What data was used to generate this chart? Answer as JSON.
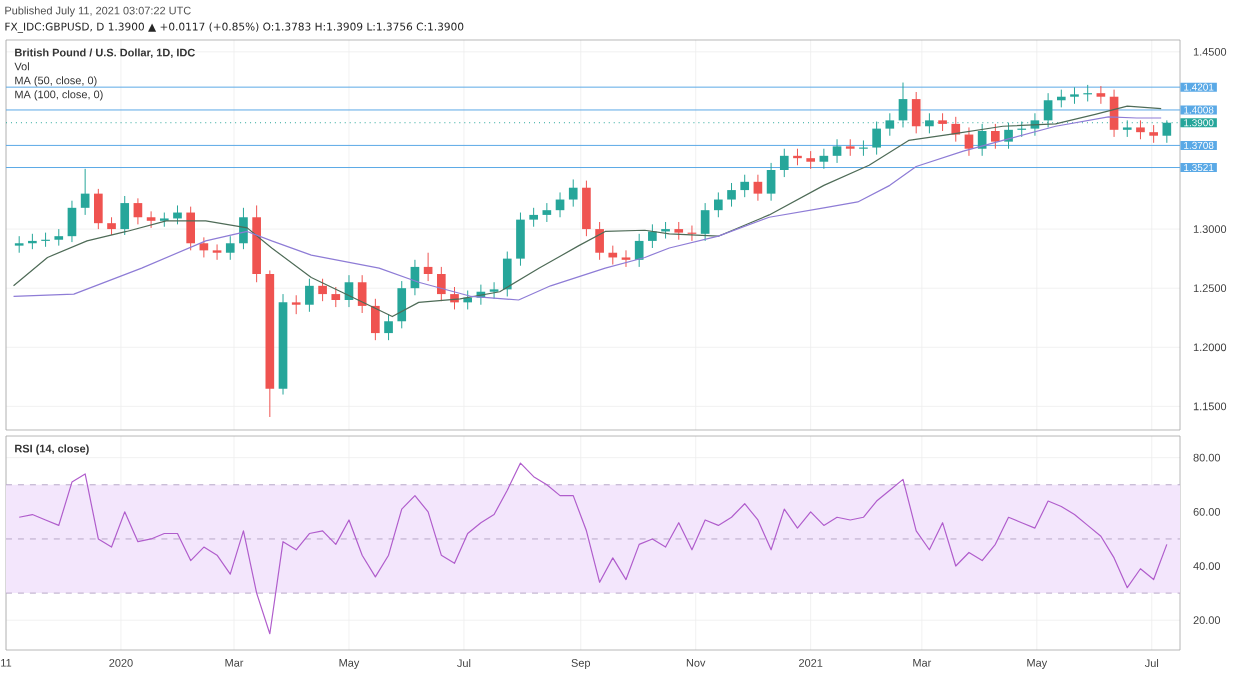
{
  "chart_data": [
    {
      "type": "candlestick",
      "title": "British Pound / U.S. Dollar, 1D, IDC",
      "annotations": [
        "Published July 11, 2021 03:07:22 UTC",
        "FX_IDC:GBPUSD, D 1.3900 ▲ +0.0117 (+0.85%) O:1.3783 H:1.3909 L:1.3756 C:1.3900",
        "Vol",
        "MA (50, close, 0)",
        "MA (100, close, 0)"
      ],
      "x": [
        "2019-11-08",
        "2019-11-15",
        "2019-11-22",
        "2019-11-29",
        "2019-12-06",
        "2019-12-13",
        "2019-12-20",
        "2019-12-27",
        "2020-01-03",
        "2020-01-10",
        "2020-01-17",
        "2020-01-24",
        "2020-01-31",
        "2020-02-07",
        "2020-02-14",
        "2020-02-21",
        "2020-02-28",
        "2020-03-06",
        "2020-03-13",
        "2020-03-20",
        "2020-03-27",
        "2020-04-03",
        "2020-04-10",
        "2020-04-17",
        "2020-04-24",
        "2020-05-01",
        "2020-05-08",
        "2020-05-15",
        "2020-05-22",
        "2020-05-29",
        "2020-06-05",
        "2020-06-12",
        "2020-06-19",
        "2020-06-26",
        "2020-07-03",
        "2020-07-10",
        "2020-07-17",
        "2020-07-24",
        "2020-07-31",
        "2020-08-07",
        "2020-08-14",
        "2020-08-21",
        "2020-08-28",
        "2020-09-04",
        "2020-09-11",
        "2020-09-18",
        "2020-09-25",
        "2020-10-02",
        "2020-10-09",
        "2020-10-16",
        "2020-10-23",
        "2020-10-30",
        "2020-11-06",
        "2020-11-13",
        "2020-11-20",
        "2020-11-27",
        "2020-12-04",
        "2020-12-11",
        "2020-12-18",
        "2020-12-25",
        "2021-01-01",
        "2021-01-08",
        "2021-01-15",
        "2021-01-22",
        "2021-01-29",
        "2021-02-05",
        "2021-02-12",
        "2021-02-19",
        "2021-02-26",
        "2021-03-05",
        "2021-03-12",
        "2021-03-19",
        "2021-03-26",
        "2021-04-02",
        "2021-04-09",
        "2021-04-16",
        "2021-04-23",
        "2021-04-30",
        "2021-05-07",
        "2021-05-14",
        "2021-05-21",
        "2021-05-28",
        "2021-06-04",
        "2021-06-11",
        "2021-06-18",
        "2021-06-25",
        "2021-07-02",
        "2021-07-09"
      ],
      "ohlc": [
        [
          1.286,
          1.294,
          1.28,
          1.288
        ],
        [
          1.288,
          1.296,
          1.283,
          1.29
        ],
        [
          1.29,
          1.297,
          1.285,
          1.291
        ],
        [
          1.291,
          1.3,
          1.286,
          1.294
        ],
        [
          1.294,
          1.324,
          1.289,
          1.318
        ],
        [
          1.318,
          1.351,
          1.312,
          1.33
        ],
        [
          1.33,
          1.334,
          1.3,
          1.305
        ],
        [
          1.305,
          1.31,
          1.295,
          1.3
        ],
        [
          1.3,
          1.328,
          1.295,
          1.322
        ],
        [
          1.322,
          1.326,
          1.304,
          1.31
        ],
        [
          1.31,
          1.315,
          1.301,
          1.307
        ],
        [
          1.307,
          1.314,
          1.302,
          1.309
        ],
        [
          1.309,
          1.32,
          1.304,
          1.314
        ],
        [
          1.314,
          1.319,
          1.282,
          1.288
        ],
        [
          1.288,
          1.293,
          1.276,
          1.282
        ],
        [
          1.282,
          1.287,
          1.274,
          1.28
        ],
        [
          1.28,
          1.294,
          1.274,
          1.288
        ],
        [
          1.288,
          1.318,
          1.283,
          1.31
        ],
        [
          1.31,
          1.32,
          1.255,
          1.262
        ],
        [
          1.262,
          1.265,
          1.141,
          1.165
        ],
        [
          1.165,
          1.245,
          1.16,
          1.238
        ],
        [
          1.238,
          1.244,
          1.228,
          1.236
        ],
        [
          1.236,
          1.258,
          1.23,
          1.252
        ],
        [
          1.252,
          1.258,
          1.239,
          1.245
        ],
        [
          1.245,
          1.251,
          1.234,
          1.24
        ],
        [
          1.24,
          1.261,
          1.234,
          1.255
        ],
        [
          1.255,
          1.261,
          1.229,
          1.235
        ],
        [
          1.235,
          1.241,
          1.206,
          1.212
        ],
        [
          1.212,
          1.228,
          1.206,
          1.222
        ],
        [
          1.222,
          1.256,
          1.216,
          1.25
        ],
        [
          1.25,
          1.274,
          1.244,
          1.268
        ],
        [
          1.268,
          1.28,
          1.256,
          1.262
        ],
        [
          1.262,
          1.268,
          1.239,
          1.245
        ],
        [
          1.245,
          1.251,
          1.232,
          1.238
        ],
        [
          1.238,
          1.248,
          1.232,
          1.242
        ],
        [
          1.242,
          1.253,
          1.236,
          1.247
        ],
        [
          1.247,
          1.255,
          1.241,
          1.249
        ],
        [
          1.249,
          1.281,
          1.243,
          1.275
        ],
        [
          1.275,
          1.314,
          1.269,
          1.308
        ],
        [
          1.308,
          1.318,
          1.302,
          1.312
        ],
        [
          1.312,
          1.322,
          1.306,
          1.316
        ],
        [
          1.316,
          1.331,
          1.31,
          1.325
        ],
        [
          1.325,
          1.342,
          1.319,
          1.335
        ],
        [
          1.335,
          1.341,
          1.294,
          1.3
        ],
        [
          1.3,
          1.306,
          1.274,
          1.28
        ],
        [
          1.28,
          1.286,
          1.27,
          1.276
        ],
        [
          1.276,
          1.282,
          1.268,
          1.274
        ],
        [
          1.274,
          1.296,
          1.268,
          1.29
        ],
        [
          1.29,
          1.304,
          1.284,
          1.298
        ],
        [
          1.298,
          1.306,
          1.292,
          1.3
        ],
        [
          1.3,
          1.306,
          1.291,
          1.297
        ],
        [
          1.297,
          1.303,
          1.29,
          1.296
        ],
        [
          1.296,
          1.322,
          1.29,
          1.316
        ],
        [
          1.316,
          1.331,
          1.31,
          1.325
        ],
        [
          1.325,
          1.339,
          1.319,
          1.333
        ],
        [
          1.333,
          1.346,
          1.327,
          1.34
        ],
        [
          1.34,
          1.346,
          1.324,
          1.33
        ],
        [
          1.33,
          1.356,
          1.324,
          1.35
        ],
        [
          1.35,
          1.368,
          1.344,
          1.362
        ],
        [
          1.362,
          1.368,
          1.354,
          1.36
        ],
        [
          1.36,
          1.366,
          1.351,
          1.357
        ],
        [
          1.357,
          1.368,
          1.351,
          1.362
        ],
        [
          1.362,
          1.376,
          1.356,
          1.37
        ],
        [
          1.37,
          1.376,
          1.362,
          1.368
        ],
        [
          1.368,
          1.375,
          1.362,
          1.369
        ],
        [
          1.369,
          1.391,
          1.363,
          1.385
        ],
        [
          1.385,
          1.398,
          1.379,
          1.392
        ],
        [
          1.392,
          1.424,
          1.386,
          1.41
        ],
        [
          1.41,
          1.416,
          1.381,
          1.387
        ],
        [
          1.387,
          1.398,
          1.381,
          1.392
        ],
        [
          1.392,
          1.398,
          1.383,
          1.389
        ],
        [
          1.389,
          1.395,
          1.374,
          1.38
        ],
        [
          1.38,
          1.386,
          1.362,
          1.368
        ],
        [
          1.368,
          1.389,
          1.362,
          1.383
        ],
        [
          1.383,
          1.389,
          1.368,
          1.374
        ],
        [
          1.374,
          1.39,
          1.368,
          1.384
        ],
        [
          1.384,
          1.391,
          1.378,
          1.385
        ],
        [
          1.385,
          1.398,
          1.379,
          1.392
        ],
        [
          1.392,
          1.415,
          1.386,
          1.409
        ],
        [
          1.409,
          1.418,
          1.403,
          1.412
        ],
        [
          1.412,
          1.42,
          1.406,
          1.414
        ],
        [
          1.414,
          1.422,
          1.408,
          1.415
        ],
        [
          1.415,
          1.421,
          1.406,
          1.412
        ],
        [
          1.412,
          1.418,
          1.378,
          1.384
        ],
        [
          1.384,
          1.392,
          1.378,
          1.386
        ],
        [
          1.386,
          1.392,
          1.376,
          1.382
        ],
        [
          1.382,
          1.388,
          1.373,
          1.379
        ],
        [
          1.379,
          1.392,
          1.373,
          1.39
        ]
      ],
      "colors": [
        "#26a69a",
        "#26a69a",
        "#26a69a",
        "#26a69a",
        "#26a69a",
        "#26a69a",
        "#ef5350",
        "#ef5350",
        "#26a69a",
        "#ef5350",
        "#ef5350",
        "#26a69a",
        "#26a69a",
        "#ef5350",
        "#ef5350",
        "#ef5350",
        "#26a69a",
        "#26a69a",
        "#ef5350",
        "#ef5350",
        "#26a69a",
        "#ef5350",
        "#26a69a",
        "#ef5350",
        "#ef5350",
        "#26a69a",
        "#ef5350",
        "#ef5350",
        "#26a69a",
        "#26a69a",
        "#26a69a",
        "#ef5350",
        "#ef5350",
        "#ef5350",
        "#26a69a",
        "#26a69a",
        "#26a69a",
        "#26a69a",
        "#26a69a",
        "#26a69a",
        "#26a69a",
        "#26a69a",
        "#26a69a",
        "#ef5350",
        "#ef5350",
        "#ef5350",
        "#ef5350",
        "#26a69a",
        "#26a69a",
        "#26a69a",
        "#ef5350",
        "#ef5350",
        "#26a69a",
        "#26a69a",
        "#26a69a",
        "#26a69a",
        "#ef5350",
        "#26a69a",
        "#26a69a",
        "#ef5350",
        "#ef5350",
        "#26a69a",
        "#26a69a",
        "#ef5350",
        "#26a69a",
        "#26a69a",
        "#26a69a",
        "#26a69a",
        "#ef5350",
        "#26a69a",
        "#ef5350",
        "#ef5350",
        "#ef5350",
        "#26a69a",
        "#ef5350",
        "#26a69a",
        "#26a69a",
        "#26a69a",
        "#26a69a",
        "#26a69a",
        "#26a69a",
        "#26a69a",
        "#ef5350",
        "#ef5350",
        "#26a69a",
        "#ef5350",
        "#ef5350",
        "#26a69a"
      ],
      "series": [
        {
          "type": "line",
          "color": "#4e6b57",
          "x": [
            "2019-11-05",
            "2019-11-23",
            "2019-12-14",
            "2020-01-04",
            "2020-01-25",
            "2020-02-15",
            "2020-03-08",
            "2020-03-21",
            "2020-04-11",
            "2020-05-02",
            "2020-05-24",
            "2020-06-07",
            "2020-06-29",
            "2020-07-20",
            "2020-08-10",
            "2020-08-31",
            "2020-09-14",
            "2020-10-05",
            "2020-10-18",
            "2020-11-13",
            "2020-12-10",
            "2021-01-08",
            "2021-02-01",
            "2021-02-22",
            "2021-03-15",
            "2021-04-13",
            "2021-05-11",
            "2021-06-01",
            "2021-06-18",
            "2021-07-06"
          ],
          "values": [
            1.252,
            1.276,
            1.29,
            1.298,
            1.307,
            1.307,
            1.301,
            1.284,
            1.259,
            1.243,
            1.226,
            1.238,
            1.241,
            1.247,
            1.267,
            1.286,
            1.298,
            1.299,
            1.296,
            1.294,
            1.312,
            1.337,
            1.354,
            1.375,
            1.38,
            1.387,
            1.389,
            1.397,
            1.404,
            1.402
          ]
        },
        {
          "type": "line",
          "color": "#8e7cd6",
          "x": [
            "2019-11-05",
            "2019-12-07",
            "2020-01-12",
            "2020-02-15",
            "2020-03-08",
            "2020-03-21",
            "2020-04-11",
            "2020-05-17",
            "2020-06-07",
            "2020-07-05",
            "2020-07-30",
            "2020-08-16",
            "2020-09-14",
            "2020-10-05",
            "2020-10-18",
            "2020-11-13",
            "2020-12-10",
            "2021-01-08",
            "2021-01-26",
            "2021-02-12",
            "2021-02-26",
            "2021-03-23",
            "2021-04-13",
            "2021-05-11",
            "2021-06-08",
            "2021-06-23",
            "2021-07-06"
          ],
          "values": [
            1.243,
            1.245,
            1.267,
            1.29,
            1.298,
            1.29,
            1.278,
            1.267,
            1.255,
            1.243,
            1.24,
            1.252,
            1.267,
            1.276,
            1.284,
            1.294,
            1.31,
            1.318,
            1.323,
            1.337,
            1.353,
            1.366,
            1.375,
            1.387,
            1.395,
            1.394,
            1.394
          ]
        }
      ],
      "xlim": [
        "2019-11-01",
        "2021-07-16"
      ],
      "ylim": [
        1.13,
        1.46
      ],
      "xticks": [
        {
          "value": "2019-11-01",
          "label": null
        },
        {
          "value": "2020-01-01",
          "label": null
        },
        {
          "value": "2020-03-01",
          "label": null
        },
        {
          "value": "2020-05-01",
          "label": null
        },
        {
          "value": "2020-07-01",
          "label": null
        },
        {
          "value": "2020-09-01",
          "label": null
        },
        {
          "value": "2020-11-01",
          "label": null
        },
        {
          "value": "2021-01-01",
          "label": null
        },
        {
          "value": "2021-03-01",
          "label": null
        },
        {
          "value": "2021-05-01",
          "label": null
        },
        {
          "value": "2021-07-01",
          "label": null
        }
      ],
      "yticks": [
        {
          "value": 1.15,
          "label": "1.1500"
        },
        {
          "value": 1.2,
          "label": "1.2000"
        },
        {
          "value": 1.25,
          "label": "1.2500"
        },
        {
          "value": 1.3,
          "label": "1.3000"
        },
        {
          "value": 1.45,
          "label": "1.4500"
        }
      ],
      "tick_labels": "y",
      "grid": true,
      "ref_lines": [
        {
          "axis": "y",
          "value": 1.4201,
          "label": "1.4201",
          "color": "#5aa9e6"
        },
        {
          "axis": "y",
          "value": 1.4008,
          "label": "1.4008",
          "color": "#5aa9e6"
        },
        {
          "axis": "y",
          "value": 1.39,
          "label": "1.3900",
          "color": "#26a69a",
          "line_style": "dotted"
        },
        {
          "axis": "y",
          "value": 1.3708,
          "label": "1.3708",
          "color": "#5aa9e6"
        },
        {
          "axis": "y",
          "value": 1.3521,
          "label": "1.3521",
          "color": "#5aa9e6"
        }
      ]
    },
    {
      "type": "line",
      "title": "RSI (14, close)",
      "color": "#b05dcc",
      "x": [
        "2019-11-08",
        "2019-11-15",
        "2019-11-22",
        "2019-11-29",
        "2019-12-06",
        "2019-12-13",
        "2019-12-20",
        "2019-12-27",
        "2020-01-03",
        "2020-01-10",
        "2020-01-17",
        "2020-01-24",
        "2020-01-31",
        "2020-02-07",
        "2020-02-14",
        "2020-02-21",
        "2020-02-28",
        "2020-03-06",
        "2020-03-13",
        "2020-03-20",
        "2020-03-27",
        "2020-04-03",
        "2020-04-10",
        "2020-04-17",
        "2020-04-24",
        "2020-05-01",
        "2020-05-08",
        "2020-05-15",
        "2020-05-22",
        "2020-05-29",
        "2020-06-05",
        "2020-06-12",
        "2020-06-19",
        "2020-06-26",
        "2020-07-03",
        "2020-07-10",
        "2020-07-17",
        "2020-07-24",
        "2020-07-31",
        "2020-08-07",
        "2020-08-14",
        "2020-08-21",
        "2020-08-28",
        "2020-09-04",
        "2020-09-11",
        "2020-09-18",
        "2020-09-25",
        "2020-10-02",
        "2020-10-09",
        "2020-10-16",
        "2020-10-23",
        "2020-10-30",
        "2020-11-06",
        "2020-11-13",
        "2020-11-20",
        "2020-11-27",
        "2020-12-04",
        "2020-12-11",
        "2020-12-18",
        "2020-12-25",
        "2021-01-01",
        "2021-01-08",
        "2021-01-15",
        "2021-01-22",
        "2021-01-29",
        "2021-02-05",
        "2021-02-12",
        "2021-02-19",
        "2021-02-26",
        "2021-03-05",
        "2021-03-12",
        "2021-03-19",
        "2021-03-26",
        "2021-04-02",
        "2021-04-09",
        "2021-04-16",
        "2021-04-23",
        "2021-04-30",
        "2021-05-07",
        "2021-05-14",
        "2021-05-21",
        "2021-05-28",
        "2021-06-04",
        "2021-06-11",
        "2021-06-18",
        "2021-06-25",
        "2021-07-02",
        "2021-07-09"
      ],
      "values": [
        58,
        59,
        57,
        55,
        71,
        74,
        50,
        47,
        60,
        49,
        50,
        52,
        52,
        42,
        47,
        44,
        37,
        53,
        30,
        15,
        49,
        46,
        52,
        53,
        48,
        57,
        44,
        36,
        44,
        61,
        66,
        60,
        44,
        41,
        52,
        56,
        59,
        68,
        78,
        73,
        70,
        66,
        66,
        53,
        34,
        43,
        35,
        48,
        50,
        47,
        56,
        46,
        57,
        55,
        58,
        63,
        57,
        46,
        61,
        54,
        60,
        55,
        58,
        57,
        58,
        64,
        68,
        72,
        53,
        46,
        56,
        40,
        45,
        42,
        48,
        58,
        56,
        54,
        64,
        62,
        59,
        55,
        51,
        43,
        32,
        39,
        35,
        48
      ],
      "xlim": [
        "2019-11-01",
        "2021-07-16"
      ],
      "ylim": [
        9,
        88
      ],
      "xticks": [
        {
          "value": "2019-11-01",
          "label": "11"
        },
        {
          "value": "2020-01-01",
          "label": "2020"
        },
        {
          "value": "2020-03-01",
          "label": "Mar"
        },
        {
          "value": "2020-05-01",
          "label": "May"
        },
        {
          "value": "2020-07-01",
          "label": "Jul"
        },
        {
          "value": "2020-09-01",
          "label": "Sep"
        },
        {
          "value": "2020-11-01",
          "label": "Nov"
        },
        {
          "value": "2021-01-01",
          "label": "2021"
        },
        {
          "value": "2021-03-01",
          "label": "Mar"
        },
        {
          "value": "2021-05-01",
          "label": "May"
        },
        {
          "value": "2021-07-01",
          "label": "Jul"
        }
      ],
      "yticks": [
        {
          "value": 20,
          "label": "20.00"
        },
        {
          "value": 40,
          "label": "40.00"
        },
        {
          "value": 60,
          "label": "60.00"
        },
        {
          "value": 80,
          "label": "80.00"
        }
      ],
      "grid": true,
      "bands": [
        {
          "axis": "y",
          "from": 30,
          "to": 70,
          "color": "#f3e6fc"
        }
      ],
      "ref_lines": [
        {
          "axis": "y",
          "value": 70,
          "color": "#b8a8c8",
          "line_style": "dashed"
        },
        {
          "axis": "y",
          "value": 50,
          "color": "#b8a8c8",
          "line_style": "dashed"
        },
        {
          "axis": "y",
          "value": 30,
          "color": "#b8a8c8",
          "line_style": "dashed"
        }
      ]
    }
  ]
}
